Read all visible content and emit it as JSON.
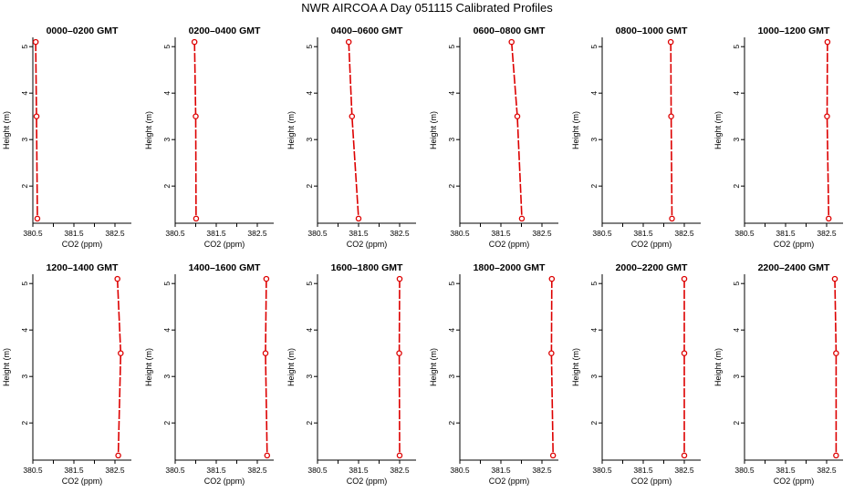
{
  "page": {
    "title": "NWR AIRCOA A  Day 051115  Calibrated Profiles"
  },
  "colors": {
    "profile": "#dd0000",
    "axis": "#000000"
  },
  "chart_data": [
    {
      "type": "line",
      "title": "0000–0200 GMT",
      "xlabel": "CO2 (ppm)",
      "ylabel": "Height (m)",
      "xlim": [
        380.5,
        382.9
      ],
      "ylim": [
        1.2,
        5.2
      ],
      "xticks": [
        "380.5",
        "381.5",
        "382.5"
      ],
      "yticks": [
        "2",
        "3",
        "4",
        "5"
      ],
      "series": [
        {
          "x": [
            380.57,
            380.59,
            380.61
          ],
          "y": [
            5.1,
            3.5,
            1.3
          ]
        }
      ]
    },
    {
      "type": "line",
      "title": "0200–0400 GMT",
      "xlabel": "CO2 (ppm)",
      "ylabel": "Height (m)",
      "xlim": [
        380.5,
        382.9
      ],
      "ylim": [
        1.2,
        5.2
      ],
      "xticks": [
        "380.5",
        "381.5",
        "382.5"
      ],
      "yticks": [
        "2",
        "3",
        "4",
        "5"
      ],
      "series": [
        {
          "x": [
            380.97,
            381.0,
            381.01
          ],
          "y": [
            5.1,
            3.5,
            1.3
          ]
        }
      ]
    },
    {
      "type": "line",
      "title": "0400–0600 GMT",
      "xlabel": "CO2 (ppm)",
      "ylabel": "Height (m)",
      "xlim": [
        380.5,
        382.9
      ],
      "ylim": [
        1.2,
        5.2
      ],
      "xticks": [
        "380.5",
        "381.5",
        "382.5"
      ],
      "yticks": [
        "2",
        "3",
        "4",
        "5"
      ],
      "series": [
        {
          "x": [
            381.26,
            381.34,
            381.5
          ],
          "y": [
            5.1,
            3.5,
            1.3
          ]
        }
      ]
    },
    {
      "type": "line",
      "title": "0600–0800 GMT",
      "xlabel": "CO2 (ppm)",
      "ylabel": "Height (m)",
      "xlim": [
        380.5,
        382.9
      ],
      "ylim": [
        1.2,
        5.2
      ],
      "xticks": [
        "380.5",
        "381.5",
        "382.5"
      ],
      "yticks": [
        "2",
        "3",
        "4",
        "5"
      ],
      "series": [
        {
          "x": [
            381.76,
            381.9,
            382.01
          ],
          "y": [
            5.1,
            3.5,
            1.3
          ]
        }
      ]
    },
    {
      "type": "line",
      "title": "0800–1000 GMT",
      "xlabel": "CO2 (ppm)",
      "ylabel": "Height (m)",
      "xlim": [
        380.5,
        382.9
      ],
      "ylim": [
        1.2,
        5.2
      ],
      "xticks": [
        "380.5",
        "381.5",
        "382.5"
      ],
      "yticks": [
        "2",
        "3",
        "4",
        "5"
      ],
      "series": [
        {
          "x": [
            382.17,
            382.18,
            382.2
          ],
          "y": [
            5.1,
            3.5,
            1.3
          ]
        }
      ]
    },
    {
      "type": "line",
      "title": "1000–1200 GMT",
      "xlabel": "CO2 (ppm)",
      "ylabel": "Height (m)",
      "xlim": [
        380.5,
        382.9
      ],
      "ylim": [
        1.2,
        5.2
      ],
      "xticks": [
        "380.5",
        "381.5",
        "382.5"
      ],
      "yticks": [
        "2",
        "3",
        "4",
        "5"
      ],
      "series": [
        {
          "x": [
            382.52,
            382.51,
            382.55
          ],
          "y": [
            5.1,
            3.5,
            1.3
          ]
        }
      ]
    },
    {
      "type": "line",
      "title": "1200–1400 GMT",
      "xlabel": "CO2 (ppm)",
      "ylabel": "Height (m)",
      "xlim": [
        380.5,
        382.9
      ],
      "ylim": [
        1.2,
        5.2
      ],
      "xticks": [
        "380.5",
        "381.5",
        "382.5"
      ],
      "yticks": [
        "2",
        "3",
        "4",
        "5"
      ],
      "series": [
        {
          "x": [
            382.56,
            382.64,
            382.58
          ],
          "y": [
            5.1,
            3.5,
            1.3
          ]
        }
      ]
    },
    {
      "type": "line",
      "title": "1400–1600 GMT",
      "xlabel": "CO2 (ppm)",
      "ylabel": "Height (m)",
      "xlim": [
        380.5,
        382.9
      ],
      "ylim": [
        1.2,
        5.2
      ],
      "xticks": [
        "380.5",
        "381.5",
        "382.5"
      ],
      "yticks": [
        "2",
        "3",
        "4",
        "5"
      ],
      "series": [
        {
          "x": [
            382.72,
            382.7,
            382.74
          ],
          "y": [
            5.1,
            3.5,
            1.3
          ]
        }
      ]
    },
    {
      "type": "line",
      "title": "1600–1800 GMT",
      "xlabel": "CO2 (ppm)",
      "ylabel": "Height (m)",
      "xlim": [
        380.5,
        382.9
      ],
      "ylim": [
        1.2,
        5.2
      ],
      "xticks": [
        "380.5",
        "381.5",
        "382.5"
      ],
      "yticks": [
        "2",
        "3",
        "4",
        "5"
      ],
      "series": [
        {
          "x": [
            382.5,
            382.49,
            382.5
          ],
          "y": [
            5.1,
            3.5,
            1.3
          ]
        }
      ]
    },
    {
      "type": "line",
      "title": "1800–2000 GMT",
      "xlabel": "CO2 (ppm)",
      "ylabel": "Height (m)",
      "xlim": [
        380.5,
        382.9
      ],
      "ylim": [
        1.2,
        5.2
      ],
      "xticks": [
        "380.5",
        "381.5",
        "382.5"
      ],
      "yticks": [
        "2",
        "3",
        "4",
        "5"
      ],
      "series": [
        {
          "x": [
            382.74,
            382.73,
            382.77
          ],
          "y": [
            5.1,
            3.5,
            1.3
          ]
        }
      ]
    },
    {
      "type": "line",
      "title": "2000–2200 GMT",
      "xlabel": "CO2 (ppm)",
      "ylabel": "Height (m)",
      "xlim": [
        380.5,
        382.9
      ],
      "ylim": [
        1.2,
        5.2
      ],
      "xticks": [
        "380.5",
        "381.5",
        "382.5"
      ],
      "yticks": [
        "2",
        "3",
        "4",
        "5"
      ],
      "series": [
        {
          "x": [
            382.5,
            382.5,
            382.5
          ],
          "y": [
            5.1,
            3.5,
            1.3
          ]
        }
      ]
    },
    {
      "type": "line",
      "title": "2200–2400 GMT",
      "xlabel": "CO2 (ppm)",
      "ylabel": "Height (m)",
      "xlim": [
        380.5,
        382.9
      ],
      "ylim": [
        1.2,
        5.2
      ],
      "xticks": [
        "380.5",
        "381.5",
        "382.5"
      ],
      "yticks": [
        "2",
        "3",
        "4",
        "5"
      ],
      "series": [
        {
          "x": [
            382.7,
            382.73,
            382.73
          ],
          "y": [
            5.1,
            3.5,
            1.3
          ]
        }
      ]
    }
  ]
}
